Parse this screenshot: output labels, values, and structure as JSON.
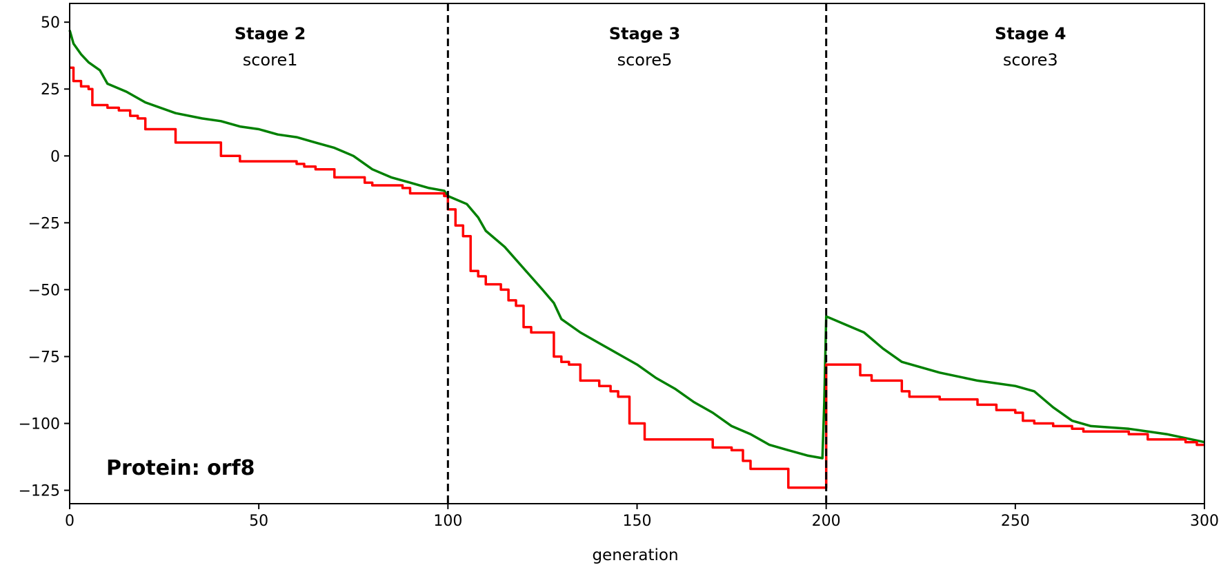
{
  "chart_data": {
    "type": "line",
    "title": "",
    "xlabel": "generation",
    "ylabel": "",
    "xlim": [
      0,
      300
    ],
    "ylim": [
      -130,
      57
    ],
    "x_ticks": [
      0,
      50,
      100,
      150,
      200,
      250,
      300
    ],
    "y_ticks": [
      50,
      25,
      0,
      -25,
      -50,
      -75,
      -100,
      -125
    ],
    "grid": false,
    "stage_dividers": [
      100,
      200
    ],
    "stages": [
      {
        "title": "Stage 2",
        "score": "score1",
        "x_center": 53
      },
      {
        "title": "Stage 3",
        "score": "score5",
        "x_center": 152
      },
      {
        "title": "Stage 4",
        "score": "score3",
        "x_center": 254
      }
    ],
    "annotation": "Protein: orf8",
    "series": [
      {
        "color": "#008000",
        "style": "smooth",
        "points": [
          [
            0,
            47
          ],
          [
            1,
            42
          ],
          [
            3,
            38
          ],
          [
            5,
            35
          ],
          [
            8,
            32
          ],
          [
            10,
            27
          ],
          [
            15,
            24
          ],
          [
            20,
            20
          ],
          [
            28,
            16
          ],
          [
            35,
            14
          ],
          [
            40,
            13
          ],
          [
            45,
            11
          ],
          [
            50,
            10
          ],
          [
            55,
            8
          ],
          [
            60,
            7
          ],
          [
            65,
            5
          ],
          [
            70,
            3
          ],
          [
            75,
            0
          ],
          [
            80,
            -5
          ],
          [
            85,
            -8
          ],
          [
            90,
            -10
          ],
          [
            95,
            -12
          ],
          [
            99,
            -13
          ],
          [
            100,
            -15
          ],
          [
            105,
            -18
          ],
          [
            108,
            -23
          ],
          [
            110,
            -28
          ],
          [
            115,
            -34
          ],
          [
            120,
            -42
          ],
          [
            125,
            -50
          ],
          [
            128,
            -55
          ],
          [
            130,
            -61
          ],
          [
            135,
            -66
          ],
          [
            140,
            -70
          ],
          [
            145,
            -74
          ],
          [
            150,
            -78
          ],
          [
            155,
            -83
          ],
          [
            160,
            -87
          ],
          [
            165,
            -92
          ],
          [
            170,
            -96
          ],
          [
            175,
            -101
          ],
          [
            180,
            -104
          ],
          [
            185,
            -108
          ],
          [
            190,
            -110
          ],
          [
            195,
            -112
          ],
          [
            199,
            -113
          ],
          [
            199.5,
            -92
          ],
          [
            200,
            -60
          ],
          [
            205,
            -63
          ],
          [
            210,
            -66
          ],
          [
            215,
            -72
          ],
          [
            220,
            -77
          ],
          [
            230,
            -81
          ],
          [
            240,
            -84
          ],
          [
            250,
            -86
          ],
          [
            255,
            -88
          ],
          [
            260,
            -94
          ],
          [
            265,
            -99
          ],
          [
            270,
            -101
          ],
          [
            280,
            -102
          ],
          [
            290,
            -104
          ],
          [
            300,
            -107
          ]
        ]
      },
      {
        "color": "#ff0000",
        "style": "step",
        "points": [
          [
            0,
            33
          ],
          [
            1,
            28
          ],
          [
            3,
            26
          ],
          [
            5,
            25
          ],
          [
            6,
            19
          ],
          [
            10,
            18
          ],
          [
            13,
            17
          ],
          [
            16,
            15
          ],
          [
            18,
            14
          ],
          [
            20,
            10
          ],
          [
            28,
            5
          ],
          [
            40,
            0
          ],
          [
            45,
            -2
          ],
          [
            60,
            -3
          ],
          [
            62,
            -4
          ],
          [
            65,
            -5
          ],
          [
            70,
            -8
          ],
          [
            78,
            -10
          ],
          [
            80,
            -11
          ],
          [
            88,
            -12
          ],
          [
            90,
            -14
          ],
          [
            95,
            -14
          ],
          [
            99,
            -15
          ],
          [
            100,
            -20
          ],
          [
            102,
            -26
          ],
          [
            104,
            -30
          ],
          [
            106,
            -43
          ],
          [
            108,
            -45
          ],
          [
            110,
            -48
          ],
          [
            114,
            -50
          ],
          [
            116,
            -54
          ],
          [
            118,
            -56
          ],
          [
            120,
            -64
          ],
          [
            122,
            -66
          ],
          [
            128,
            -75
          ],
          [
            130,
            -77
          ],
          [
            132,
            -78
          ],
          [
            135,
            -84
          ],
          [
            140,
            -86
          ],
          [
            143,
            -88
          ],
          [
            145,
            -90
          ],
          [
            148,
            -100
          ],
          [
            152,
            -106
          ],
          [
            160,
            -106
          ],
          [
            168,
            -106
          ],
          [
            170,
            -109
          ],
          [
            175,
            -110
          ],
          [
            178,
            -114
          ],
          [
            180,
            -117
          ],
          [
            185,
            -117
          ],
          [
            190,
            -124
          ],
          [
            199,
            -124
          ],
          [
            200,
            -78
          ],
          [
            207,
            -78
          ],
          [
            209,
            -82
          ],
          [
            212,
            -84
          ],
          [
            220,
            -88
          ],
          [
            222,
            -90
          ],
          [
            230,
            -91
          ],
          [
            240,
            -93
          ],
          [
            245,
            -95
          ],
          [
            250,
            -96
          ],
          [
            252,
            -99
          ],
          [
            255,
            -100
          ],
          [
            260,
            -101
          ],
          [
            265,
            -102
          ],
          [
            268,
            -103
          ],
          [
            275,
            -103
          ],
          [
            280,
            -104
          ],
          [
            285,
            -106
          ],
          [
            290,
            -106
          ],
          [
            295,
            -107
          ],
          [
            298,
            -108
          ],
          [
            300,
            -108
          ]
        ]
      }
    ]
  }
}
